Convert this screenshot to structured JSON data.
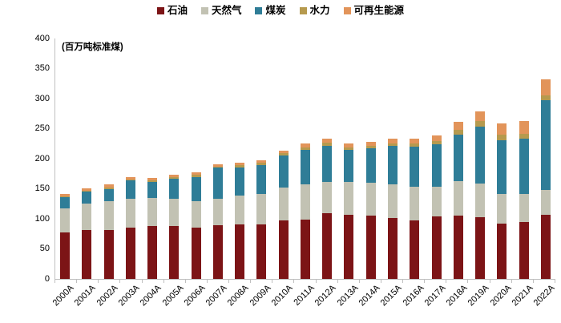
{
  "unit_label": "(百万吨标准煤)",
  "legend": [
    {
      "label": "石油",
      "color": "#7c1416"
    },
    {
      "label": "天然气",
      "color": "#c2c2b3"
    },
    {
      "label": "煤炭",
      "color": "#2f7d97"
    },
    {
      "label": "水力",
      "color": "#b69a4e"
    },
    {
      "label": "可再生能源",
      "color": "#e2945a"
    }
  ],
  "chart_data": {
    "type": "bar",
    "stacked": true,
    "title": "",
    "xlabel": "",
    "ylabel": "(百万吨标准煤)",
    "ylim": [
      0,
      400
    ],
    "yticks": [
      0,
      50,
      100,
      150,
      200,
      250,
      300,
      350,
      400
    ],
    "grid": false,
    "legend_position": "top-center",
    "categories": [
      "2000A",
      "2001A",
      "2002A",
      "2003A",
      "2004A",
      "2005A",
      "2006A",
      "2007A",
      "2008A",
      "2009A",
      "2010A",
      "2011A",
      "2012A",
      "2013A",
      "2014A",
      "2015A",
      "2016A",
      "2017A",
      "2018A",
      "2019A",
      "2020A",
      "2021A",
      "2022A"
    ],
    "series": [
      {
        "name": "石油",
        "color": "#7c1416",
        "values": [
          78,
          81,
          82,
          85,
          88,
          88,
          85,
          89,
          91,
          91,
          97,
          99,
          109,
          107,
          105,
          101,
          98,
          104,
          106,
          103,
          92,
          95,
          107
        ]
      },
      {
        "name": "天然气",
        "color": "#c2c2b3",
        "values": [
          40,
          44,
          47,
          48,
          47,
          46,
          44,
          44,
          48,
          51,
          55,
          58,
          52,
          54,
          55,
          56,
          55,
          50,
          57,
          56,
          49,
          46,
          41
        ]
      },
      {
        "name": "煤炭",
        "color": "#2f7d97",
        "values": [
          18,
          20,
          21,
          31,
          27,
          33,
          41,
          52,
          47,
          47,
          53,
          58,
          61,
          54,
          57,
          64,
          67,
          70,
          77,
          95,
          90,
          92,
          149
        ]
      },
      {
        "name": "水力",
        "color": "#b69a4e",
        "values": [
          2,
          2,
          2,
          2,
          2,
          3,
          3,
          2,
          3,
          4,
          4,
          4,
          5,
          4,
          5,
          5,
          6,
          6,
          8,
          9,
          9,
          9,
          9
        ]
      },
      {
        "name": "可再生能源",
        "color": "#e2945a",
        "values": [
          4,
          4,
          5,
          4,
          4,
          4,
          5,
          4,
          4,
          4,
          5,
          6,
          7,
          7,
          6,
          7,
          8,
          9,
          14,
          16,
          19,
          21,
          26
        ]
      }
    ]
  },
  "axis": {
    "line_color": "#bfbfbf"
  }
}
